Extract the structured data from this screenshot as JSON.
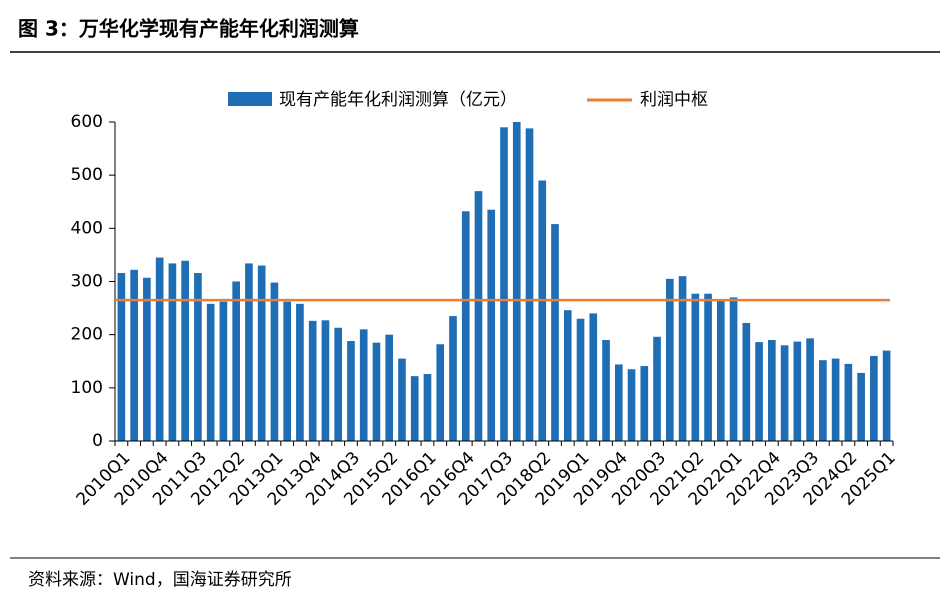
{
  "chart_data": {
    "type": "bar",
    "title": "图 3：万华化学现有产能年化利润测算",
    "source": "资料来源：Wind，国海证券研究所",
    "categories": [
      "2010Q1",
      null,
      null,
      "2010Q4",
      null,
      null,
      "2011Q3",
      null,
      null,
      "2012Q2",
      null,
      null,
      "2013Q1",
      null,
      null,
      "2013Q4",
      null,
      null,
      "2014Q3",
      null,
      null,
      "2015Q2",
      null,
      null,
      "2016Q1",
      null,
      null,
      "2016Q4",
      null,
      null,
      "2017Q3",
      null,
      null,
      "2018Q2",
      null,
      null,
      "2019Q1",
      null,
      null,
      "2019Q4",
      null,
      null,
      "2020Q3",
      null,
      null,
      "2021Q2",
      null,
      null,
      "2022Q1",
      null,
      null,
      "2022Q4",
      null,
      null,
      "2023Q3",
      null,
      null,
      "2024Q2",
      null,
      null,
      "2025Q1"
    ],
    "series": [
      {
        "name": "现有产能年化利润测算（亿元）",
        "color": "#1f6db4",
        "values": [
          316,
          322,
          307,
          345,
          334,
          339,
          316,
          258,
          262,
          300,
          334,
          330,
          298,
          262,
          258,
          226,
          227,
          213,
          188,
          210,
          185,
          200,
          155,
          122,
          126,
          182,
          235,
          432,
          470,
          435,
          590,
          600,
          588,
          490,
          408,
          246,
          230,
          240,
          190,
          144,
          135,
          141,
          196,
          305,
          310,
          277,
          277,
          263,
          270,
          222,
          186,
          190,
          180,
          187,
          193,
          152,
          155,
          145,
          128,
          160,
          170
        ]
      }
    ],
    "reference_line": {
      "name": "利润中枢",
      "value": 265,
      "color": "#ed7d31"
    },
    "ylim": [
      0,
      600
    ],
    "yticks": [
      0,
      100,
      200,
      300,
      400,
      500,
      600
    ]
  }
}
